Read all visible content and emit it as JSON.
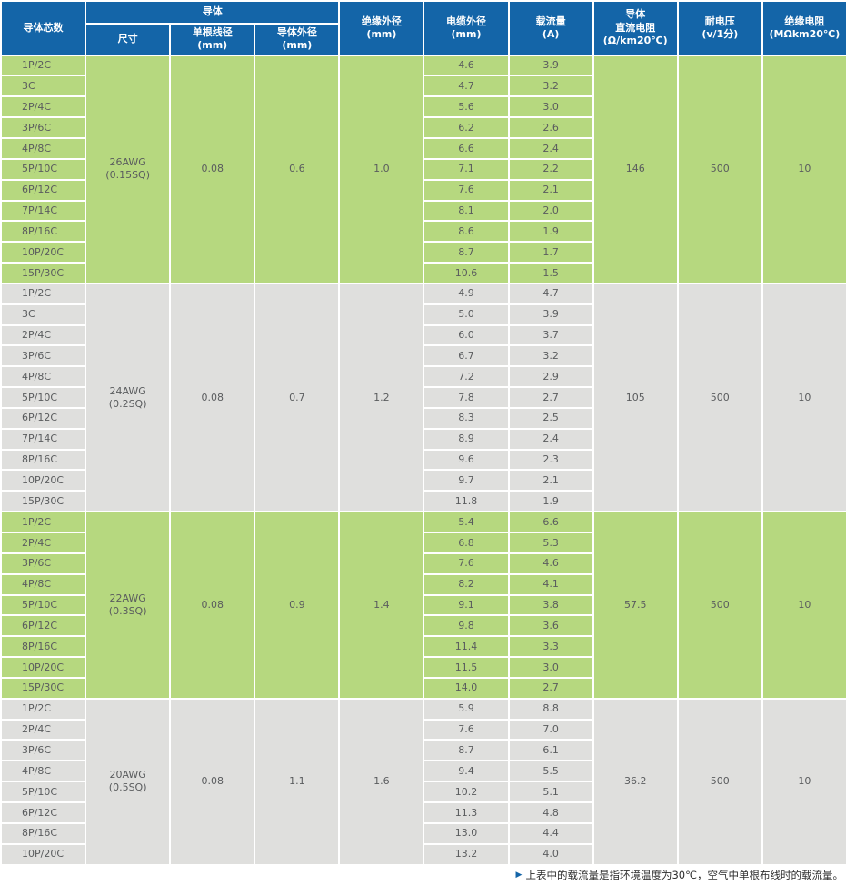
{
  "header": {
    "cores": "导体芯数",
    "conductor_group": "导体",
    "size": "尺寸",
    "wire_dia": "单根线径\n(mm)",
    "conductor_od": "导体外径\n(mm)",
    "insulation_od": "绝缘外径\n(mm)",
    "cable_od": "电缆外径\n(mm)",
    "current": "载流量\n(A)",
    "resistance": "导体\n直流电阻\n(Ω/km20℃)",
    "voltage": "耐电压\n(v/1分)",
    "insulation_res": "绝缘电阻\n(MΩkm20℃)"
  },
  "groups": [
    {
      "size": "26AWG\n(0.15SQ)",
      "wire_dia": "0.08",
      "conductor_od": "0.6",
      "insulation_od": "1.0",
      "resistance": "146",
      "voltage": "500",
      "insulation_res": "10",
      "theme": "green",
      "rows": [
        {
          "cores": "1P/2C",
          "cable_od": "4.6",
          "current": "3.9"
        },
        {
          "cores": "3C",
          "cable_od": "4.7",
          "current": "3.2"
        },
        {
          "cores": "2P/4C",
          "cable_od": "5.6",
          "current": "3.0"
        },
        {
          "cores": "3P/6C",
          "cable_od": "6.2",
          "current": "2.6"
        },
        {
          "cores": "4P/8C",
          "cable_od": "6.6",
          "current": "2.4"
        },
        {
          "cores": "5P/10C",
          "cable_od": "7.1",
          "current": "2.2"
        },
        {
          "cores": "6P/12C",
          "cable_od": "7.6",
          "current": "2.1"
        },
        {
          "cores": "7P/14C",
          "cable_od": "8.1",
          "current": "2.0"
        },
        {
          "cores": "8P/16C",
          "cable_od": "8.6",
          "current": "1.9"
        },
        {
          "cores": "10P/20C",
          "cable_od": "8.7",
          "current": "1.7"
        },
        {
          "cores": "15P/30C",
          "cable_od": "10.6",
          "current": "1.5"
        }
      ]
    },
    {
      "size": "24AWG\n(0.2SQ)",
      "wire_dia": "0.08",
      "conductor_od": "0.7",
      "insulation_od": "1.2",
      "resistance": "105",
      "voltage": "500",
      "insulation_res": "10",
      "theme": "gray",
      "rows": [
        {
          "cores": "1P/2C",
          "cable_od": "4.9",
          "current": "4.7"
        },
        {
          "cores": "3C",
          "cable_od": "5.0",
          "current": "3.9"
        },
        {
          "cores": "2P/4C",
          "cable_od": "6.0",
          "current": "3.7"
        },
        {
          "cores": "3P/6C",
          "cable_od": "6.7",
          "current": "3.2"
        },
        {
          "cores": "4P/8C",
          "cable_od": "7.2",
          "current": "2.9"
        },
        {
          "cores": "5P/10C",
          "cable_od": "7.8",
          "current": "2.7"
        },
        {
          "cores": "6P/12C",
          "cable_od": "8.3",
          "current": "2.5"
        },
        {
          "cores": "7P/14C",
          "cable_od": "8.9",
          "current": "2.4"
        },
        {
          "cores": "8P/16C",
          "cable_od": "9.6",
          "current": "2.3"
        },
        {
          "cores": "10P/20C",
          "cable_od": "9.7",
          "current": "2.1"
        },
        {
          "cores": "15P/30C",
          "cable_od": "11.8",
          "current": "1.9"
        }
      ]
    },
    {
      "size": "22AWG\n(0.3SQ)",
      "wire_dia": "0.08",
      "conductor_od": "0.9",
      "insulation_od": "1.4",
      "resistance": "57.5",
      "voltage": "500",
      "insulation_res": "10",
      "theme": "green",
      "rows": [
        {
          "cores": "1P/2C",
          "cable_od": "5.4",
          "current": "6.6"
        },
        {
          "cores": "2P/4C",
          "cable_od": "6.8",
          "current": "5.3"
        },
        {
          "cores": "3P/6C",
          "cable_od": "7.6",
          "current": "4.6"
        },
        {
          "cores": "4P/8C",
          "cable_od": "8.2",
          "current": "4.1"
        },
        {
          "cores": "5P/10C",
          "cable_od": "9.1",
          "current": "3.8"
        },
        {
          "cores": "6P/12C",
          "cable_od": "9.8",
          "current": "3.6"
        },
        {
          "cores": "8P/16C",
          "cable_od": "11.4",
          "current": "3.3"
        },
        {
          "cores": "10P/20C",
          "cable_od": "11.5",
          "current": "3.0"
        },
        {
          "cores": "15P/30C",
          "cable_od": "14.0",
          "current": "2.7"
        }
      ]
    },
    {
      "size": "20AWG\n(0.5SQ)",
      "wire_dia": "0.08",
      "conductor_od": "1.1",
      "insulation_od": "1.6",
      "resistance": "36.2",
      "voltage": "500",
      "insulation_res": "10",
      "theme": "gray",
      "rows": [
        {
          "cores": "1P/2C",
          "cable_od": "5.9",
          "current": "8.8"
        },
        {
          "cores": "2P/4C",
          "cable_od": "7.6",
          "current": "7.0"
        },
        {
          "cores": "3P/6C",
          "cable_od": "8.7",
          "current": "6.1"
        },
        {
          "cores": "4P/8C",
          "cable_od": "9.4",
          "current": "5.5"
        },
        {
          "cores": "5P/10C",
          "cable_od": "10.2",
          "current": "5.1"
        },
        {
          "cores": "6P/12C",
          "cable_od": "11.3",
          "current": "4.8"
        },
        {
          "cores": "8P/16C",
          "cable_od": "13.0",
          "current": "4.4"
        },
        {
          "cores": "10P/20C",
          "cable_od": "13.2",
          "current": "4.0"
        }
      ]
    }
  ],
  "footnote": {
    "marker": "▶",
    "text": "上表中的载流量是指环境温度为30℃，空气中单根布线时的载流量。"
  },
  "colors": {
    "header_bg": "#1465a8",
    "green": "#b6d87f",
    "gray": "#dfdfdd"
  }
}
